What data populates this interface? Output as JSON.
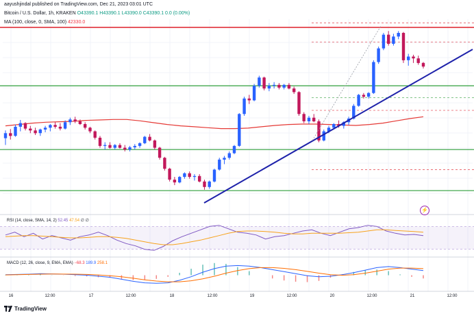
{
  "header": {
    "published": "aayushjindal published on TradingView.com, Dec 21, 2023 03:01 UTC",
    "symbol": "Bitcoin / U.S. Dollar, 1h, KRAKEN",
    "ohlc": "O43390.1 H43390.1 L43390.0 C43390.1 0.0 (0.00%)",
    "ma_label": "MA (100, close, 0, SMA, 100)",
    "ma_value": "42330.0"
  },
  "rsi_label": {
    "name": "RSI (14, close, SMA, 14, 2)",
    "value1": "52.45",
    "value2": "47.54",
    "extra": "∅ ∅"
  },
  "macd_label": {
    "name": "MACD (12, 26, close, 9, EMA, EMA)",
    "hist": "−68.3",
    "macd": "189.9",
    "signal": "258.1"
  },
  "footer": {
    "brand": "TradingView"
  },
  "x_axis_labels": [
    "16",
    "12:00",
    "17",
    "12:00",
    "18",
    "12:00",
    "19",
    "12:00",
    "20",
    "12:00",
    "21",
    "12:00"
  ],
  "colors": {
    "up": "#089981",
    "down": "#f23645",
    "candle_up_body": "#2962ff",
    "candle_down_body": "#c2185b",
    "ma": "#e53935",
    "trendline": "#1e22aa",
    "support": "#2e9e3a",
    "resistance": "#e0303a",
    "rsi": "#7e57c2",
    "rsi_ma": "#f7a21b",
    "macd": "#2962ff",
    "signal": "#ff6d00"
  },
  "chart_data": [
    {
      "type": "candlestick",
      "title": "Bitcoin / U.S. Dollar, 1h, KRAKEN",
      "ylim": [
        40400,
        44400
      ],
      "x_ticks": [
        "16",
        "12:00",
        "17",
        "12:00",
        "18",
        "12:00",
        "19",
        "12:00",
        "20",
        "12:00",
        "21",
        "12:00"
      ],
      "candles": [
        [
          41850,
          42020,
          41700,
          41960
        ],
        [
          41960,
          42050,
          41820,
          41900
        ],
        [
          41900,
          42150,
          41880,
          42100
        ],
        [
          42100,
          42250,
          42000,
          42180
        ],
        [
          42180,
          42200,
          42020,
          42060
        ],
        [
          42060,
          42120,
          41960,
          42020
        ],
        [
          42020,
          42080,
          41920,
          41960
        ],
        [
          41960,
          42060,
          41900,
          42040
        ],
        [
          42040,
          42120,
          41980,
          42080
        ],
        [
          42080,
          42160,
          42000,
          42140
        ],
        [
          42140,
          42200,
          42060,
          42100
        ],
        [
          42100,
          42180,
          42020,
          42060
        ],
        [
          42060,
          42240,
          42040,
          42200
        ],
        [
          42200,
          42300,
          42140,
          42260
        ],
        [
          42260,
          42320,
          42180,
          42220
        ],
        [
          42220,
          42260,
          42140,
          42160
        ],
        [
          42160,
          42200,
          42040,
          42080
        ],
        [
          42080,
          42100,
          41960,
          42000
        ],
        [
          42000,
          42020,
          41820,
          41860
        ],
        [
          41860,
          41900,
          41640,
          41680
        ],
        [
          41680,
          41760,
          41600,
          41700
        ],
        [
          41700,
          41760,
          41620,
          41640
        ],
        [
          41640,
          41720,
          41600,
          41700
        ],
        [
          41700,
          41740,
          41620,
          41640
        ],
        [
          41640,
          41700,
          41560,
          41600
        ],
        [
          41600,
          41680,
          41560,
          41650
        ],
        [
          41650,
          41720,
          41600,
          41680
        ],
        [
          41680,
          41760,
          41640,
          41740
        ],
        [
          41740,
          41900,
          41720,
          41880
        ],
        [
          41880,
          41940,
          41780,
          41800
        ],
        [
          41800,
          41820,
          41600,
          41640
        ],
        [
          41640,
          41660,
          41380,
          41420
        ],
        [
          41420,
          41440,
          41140,
          41180
        ],
        [
          41180,
          41200,
          40900,
          40940
        ],
        [
          40940,
          41000,
          40820,
          40880
        ],
        [
          40880,
          41020,
          40860,
          41000
        ],
        [
          41000,
          41100,
          40960,
          41080
        ],
        [
          41080,
          41120,
          40960,
          41000
        ],
        [
          41000,
          41060,
          40920,
          41020
        ],
        [
          41020,
          41060,
          40880,
          40900
        ],
        [
          40900,
          40940,
          40720,
          40780
        ],
        [
          40780,
          40920,
          40740,
          40900
        ],
        [
          40900,
          41180,
          40880,
          41160
        ],
        [
          41160,
          41420,
          41140,
          41380
        ],
        [
          41380,
          41460,
          41280,
          41420
        ],
        [
          41420,
          41560,
          41380,
          41520
        ],
        [
          41520,
          41700,
          41500,
          41680
        ],
        [
          41680,
          42400,
          41660,
          42380
        ],
        [
          42380,
          42760,
          42340,
          42720
        ],
        [
          42720,
          42800,
          42600,
          42680
        ],
        [
          42680,
          43040,
          42660,
          43000
        ],
        [
          43000,
          43220,
          42960,
          43180
        ],
        [
          43180,
          43200,
          42900,
          42940
        ],
        [
          42940,
          43060,
          42880,
          43000
        ],
        [
          43000,
          43080,
          42940,
          43020
        ],
        [
          43020,
          43060,
          42920,
          42960
        ],
        [
          42960,
          43040,
          42920,
          43020
        ],
        [
          43020,
          43060,
          42920,
          42940
        ],
        [
          42940,
          42980,
          42820,
          42860
        ],
        [
          42860,
          42880,
          42340,
          42380
        ],
        [
          42380,
          42420,
          42180,
          42220
        ],
        [
          42220,
          42340,
          42160,
          42300
        ],
        [
          42300,
          42380,
          42200,
          42220
        ],
        [
          42220,
          42260,
          41760,
          41800
        ],
        [
          41800,
          42040,
          41780,
          42000
        ],
        [
          42000,
          42120,
          41960,
          42080
        ],
        [
          42080,
          42180,
          42040,
          42160
        ],
        [
          42160,
          42240,
          42080,
          42120
        ],
        [
          42120,
          42220,
          42060,
          42200
        ],
        [
          42200,
          42320,
          42140,
          42280
        ],
        [
          42280,
          42600,
          42260,
          42560
        ],
        [
          42560,
          42820,
          42540,
          42800
        ],
        [
          42800,
          42840,
          42720,
          42760
        ],
        [
          42760,
          42860,
          42720,
          42840
        ],
        [
          42840,
          43560,
          42820,
          43520
        ],
        [
          43520,
          43860,
          43480,
          43820
        ],
        [
          43820,
          44160,
          43780,
          44120
        ],
        [
          44120,
          44200,
          43880,
          43920
        ],
        [
          43920,
          44140,
          43880,
          44080
        ],
        [
          44080,
          44200,
          44020,
          44160
        ],
        [
          44160,
          44180,
          43500,
          43560
        ],
        [
          43560,
          43700,
          43440,
          43640
        ],
        [
          43640,
          43680,
          43500,
          43600
        ],
        [
          43600,
          43660,
          43460,
          43500
        ],
        [
          43500,
          43520,
          43380,
          43420
        ]
      ],
      "ma_100": [
        42120,
        42150,
        42180,
        42200,
        42210,
        42220,
        42240,
        42250,
        42260,
        42260,
        42230,
        42190,
        42150,
        42120,
        42100,
        42080,
        42060,
        42060,
        42070,
        42100,
        42130,
        42150,
        42160,
        42160,
        42150,
        42140,
        42130,
        42150,
        42180,
        42230,
        42280,
        42320
      ]
    },
    {
      "type": "line",
      "title": "RSI (14, close, SMA, 14, 2)",
      "ylim": [
        20,
        80
      ],
      "series": [
        {
          "name": "RSI",
          "values": [
            55,
            60,
            52,
            58,
            48,
            54,
            50,
            46,
            52,
            55,
            60,
            54,
            46,
            40,
            36,
            30,
            28,
            35,
            45,
            52,
            58,
            64,
            70,
            72,
            66,
            60,
            58,
            55,
            48,
            52,
            54,
            58,
            62,
            64,
            58,
            54,
            60,
            66,
            68,
            72,
            70,
            62,
            58,
            55,
            56,
            54
          ]
        },
        {
          "name": "RSI-based MA",
          "values": [
            52,
            53,
            54,
            54,
            53,
            52,
            51,
            50,
            50,
            51,
            52,
            52,
            51,
            49,
            46,
            43,
            40,
            38,
            38,
            40,
            43,
            46,
            50,
            54,
            58,
            61,
            62,
            62,
            61,
            60,
            58,
            57,
            57,
            58,
            58,
            58,
            58,
            59,
            60,
            62,
            64,
            64,
            63,
            62,
            61,
            60
          ]
        }
      ]
    },
    {
      "type": "line",
      "title": "MACD (12, 26, close, 9, EMA, EMA)",
      "ylim": [
        -500,
        500
      ],
      "series": [
        {
          "name": "MACD",
          "values": [
            20,
            30,
            40,
            60,
            50,
            40,
            20,
            0,
            -40,
            -80,
            -160,
            -240,
            -300,
            -320,
            -300,
            -200,
            -60,
            120,
            260,
            360,
            380,
            360,
            300,
            220,
            140,
            60,
            -20,
            -60,
            -40,
            20,
            100,
            200,
            300,
            340,
            300,
            240,
            180
          ]
        },
        {
          "name": "Signal",
          "values": [
            10,
            20,
            30,
            40,
            45,
            44,
            40,
            30,
            10,
            -20,
            -60,
            -120,
            -180,
            -230,
            -260,
            -260,
            -220,
            -140,
            -40,
            80,
            180,
            260,
            300,
            300,
            270,
            220,
            150,
            80,
            20,
            0,
            20,
            80,
            160,
            240,
            280,
            280,
            260
          ]
        }
      ]
    }
  ]
}
